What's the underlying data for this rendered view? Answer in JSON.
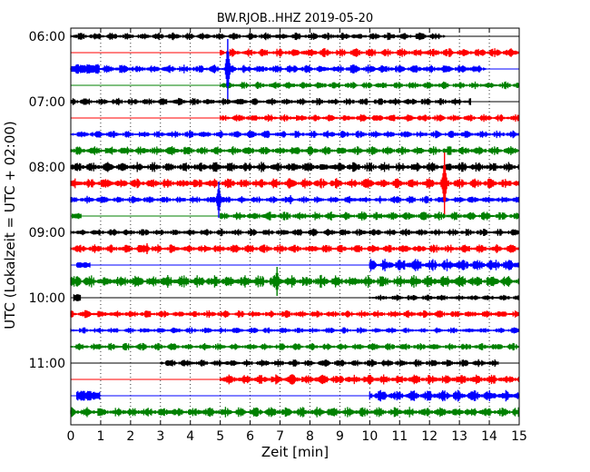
{
  "chart_data": {
    "type": "line",
    "title": "BW.RJOB..HHZ 2019-05-20",
    "xlabel": "Zeit  [min]",
    "ylabel": "UTC (Lokalzeit = UTC + 02:00)",
    "xlim": [
      0,
      15
    ],
    "x_ticks": [
      "0",
      "1",
      "2",
      "3",
      "4",
      "5",
      "6",
      "7",
      "8",
      "9",
      "10",
      "11",
      "12",
      "13",
      "14",
      "15"
    ],
    "y_ticks": [
      "06:00",
      "07:00",
      "08:00",
      "09:00",
      "10:00",
      "11:00"
    ],
    "grid": true,
    "series_colors": [
      "#000000",
      "#ff0000",
      "#0000ff",
      "#008000"
    ],
    "traces": [
      {
        "time": "06:00",
        "color": "#000000",
        "start": 0,
        "end": 12.5,
        "amp": 3
      },
      {
        "time": "06:15",
        "color": "#ff0000",
        "start": 5,
        "end": 15,
        "amp": 3.5
      },
      {
        "time": "06:30",
        "color": "#0000ff",
        "start": 0,
        "end": 13.9,
        "amp": 3.5
      },
      {
        "time": "06:45",
        "color": "#008000",
        "start": 5,
        "end": 15,
        "amp": 3
      },
      {
        "time": "07:00",
        "color": "#000000",
        "start": 0,
        "end": 13.4,
        "amp": 3
      },
      {
        "time": "07:15",
        "color": "#ff0000",
        "start": 5,
        "end": 15,
        "amp": 3
      },
      {
        "time": "07:30",
        "color": "#0000ff",
        "start": 0,
        "end": 15,
        "amp": 3
      },
      {
        "time": "07:45",
        "color": "#008000",
        "start": 0,
        "end": 15,
        "amp": 3.5
      },
      {
        "time": "08:00",
        "color": "#000000",
        "start": 0,
        "end": 15,
        "amp": 4
      },
      {
        "time": "08:15",
        "color": "#ff0000",
        "start": 0,
        "end": 15,
        "amp": 4
      },
      {
        "time": "08:30",
        "color": "#0000ff",
        "start": 0,
        "end": 15,
        "amp": 3
      },
      {
        "time": "08:45",
        "color": "#008000",
        "start": 5,
        "end": 15,
        "amp": 3.5
      },
      {
        "time": "09:00",
        "color": "#000000",
        "start": 0,
        "end": 15,
        "amp": 3
      },
      {
        "time": "09:15",
        "color": "#ff0000",
        "start": 0,
        "end": 15,
        "amp": 3.5
      },
      {
        "time": "09:30",
        "color": "#0000ff",
        "start": 10,
        "end": 15,
        "amp": 5
      },
      {
        "time": "09:45",
        "color": "#008000",
        "start": 0,
        "end": 15,
        "amp": 5
      },
      {
        "time": "10:00",
        "color": "#000000",
        "start": 10,
        "end": 15,
        "amp": 2.5
      },
      {
        "time": "10:15",
        "color": "#ff0000",
        "start": 0,
        "end": 15,
        "amp": 3
      },
      {
        "time": "10:30",
        "color": "#0000ff",
        "start": 0,
        "end": 15,
        "amp": 2.5
      },
      {
        "time": "10:45",
        "color": "#008000",
        "start": 0,
        "end": 15,
        "amp": 3
      },
      {
        "time": "11:00",
        "color": "#000000",
        "start": 3,
        "end": 14.3,
        "amp": 3
      },
      {
        "time": "11:15",
        "color": "#ff0000",
        "start": 5,
        "end": 15,
        "amp": 4
      },
      {
        "time": "11:30",
        "color": "#0000ff",
        "start": 10,
        "end": 15,
        "amp": 4.5
      },
      {
        "time": "11:45",
        "color": "#008000",
        "start": 0,
        "end": 15,
        "amp": 4
      }
    ],
    "bursts": [
      {
        "trace": 2,
        "start": 0.15,
        "end": 0.95,
        "amp": 5
      },
      {
        "trace": 9,
        "start": 0.0,
        "end": 0.2,
        "amp": 3
      },
      {
        "trace": 11,
        "start": 0.05,
        "end": 0.35,
        "amp": 3
      },
      {
        "trace": 14,
        "start": 0.2,
        "end": 0.65,
        "amp": 3
      },
      {
        "trace": 16,
        "start": 0.1,
        "end": 0.35,
        "amp": 4
      },
      {
        "trace": 22,
        "start": 0.2,
        "end": 1.0,
        "amp": 5
      }
    ],
    "events": [
      {
        "trace": 2,
        "x": 5.25,
        "amp": 33
      },
      {
        "trace": 9,
        "x": 12.5,
        "amp": 34
      },
      {
        "trace": 10,
        "x": 4.95,
        "amp": 20
      },
      {
        "trace": 10,
        "x": 7.35,
        "amp": 5
      },
      {
        "trace": 13,
        "x": 2.55,
        "amp": 6
      },
      {
        "trace": 15,
        "x": 6.9,
        "amp": 16
      }
    ]
  }
}
